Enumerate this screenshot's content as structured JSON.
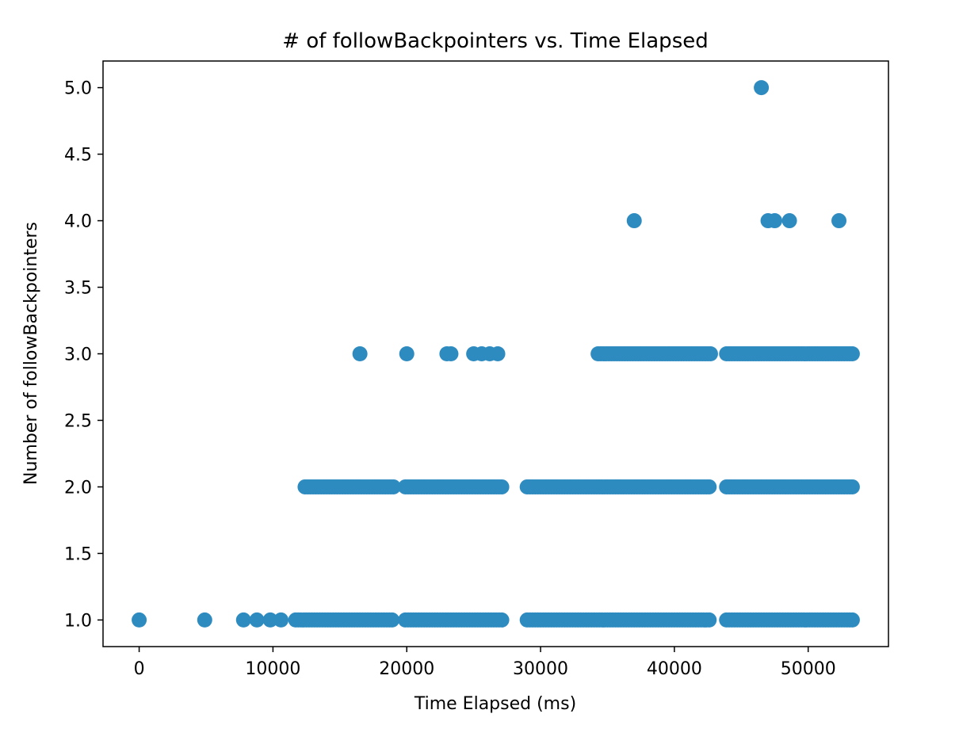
{
  "chart_data": {
    "type": "scatter",
    "title": "# of followBackpointers vs. Time Elapsed",
    "xlabel": "Time Elapsed (ms)",
    "ylabel": "Number of followBackpointers",
    "xlim": [
      -2700,
      56000
    ],
    "ylim": [
      0.8,
      5.2
    ],
    "xticks": [
      0,
      10000,
      20000,
      30000,
      40000,
      50000
    ],
    "xtick_labels": [
      "0",
      "10000",
      "20000",
      "30000",
      "40000",
      "50000"
    ],
    "yticks": [
      1.0,
      1.5,
      2.0,
      2.5,
      3.0,
      3.5,
      4.0,
      4.5,
      5.0
    ],
    "ytick_labels": [
      "1.0",
      "1.5",
      "2.0",
      "2.5",
      "3.0",
      "3.5",
      "4.0",
      "4.5",
      "5.0"
    ],
    "grid": false,
    "marker_color": "#2e8bc0",
    "series": [
      {
        "points": [
          {
            "x": 0,
            "y": 1
          },
          {
            "x": 4900,
            "y": 1
          },
          {
            "x": 7800,
            "y": 1
          },
          {
            "x": 8800,
            "y": 1
          },
          {
            "x": 9800,
            "y": 1
          },
          {
            "x": 10600,
            "y": 1
          },
          {
            "x": 46500,
            "y": 5
          },
          {
            "x": 37000,
            "y": 4
          },
          {
            "x": 47000,
            "y": 4
          },
          {
            "x": 47500,
            "y": 4
          },
          {
            "x": 48600,
            "y": 4
          },
          {
            "x": 52300,
            "y": 4
          },
          {
            "x": 16500,
            "y": 3
          },
          {
            "x": 20000,
            "y": 3
          },
          {
            "x": 23000,
            "y": 3
          },
          {
            "x": 23300,
            "y": 3
          },
          {
            "x": 25000,
            "y": 3
          },
          {
            "x": 25600,
            "y": 3
          },
          {
            "x": 26200,
            "y": 3
          },
          {
            "x": 26800,
            "y": 3
          }
        ],
        "ranges": [
          {
            "from": 11700,
            "to": 19000,
            "step": 200,
            "y": 1
          },
          {
            "from": 19900,
            "to": 27100,
            "step": 200,
            "y": 1
          },
          {
            "from": 29000,
            "to": 42700,
            "step": 200,
            "y": 1
          },
          {
            "from": 43900,
            "to": 53400,
            "step": 200,
            "y": 1
          },
          {
            "from": 12400,
            "to": 19000,
            "step": 200,
            "y": 2
          },
          {
            "from": 19900,
            "to": 27100,
            "step": 200,
            "y": 2
          },
          {
            "from": 29000,
            "to": 42700,
            "step": 200,
            "y": 2
          },
          {
            "from": 43900,
            "to": 53400,
            "step": 200,
            "y": 2
          },
          {
            "from": 34300,
            "to": 42700,
            "step": 200,
            "y": 3
          },
          {
            "from": 43900,
            "to": 53400,
            "step": 200,
            "y": 3
          }
        ]
      }
    ]
  }
}
